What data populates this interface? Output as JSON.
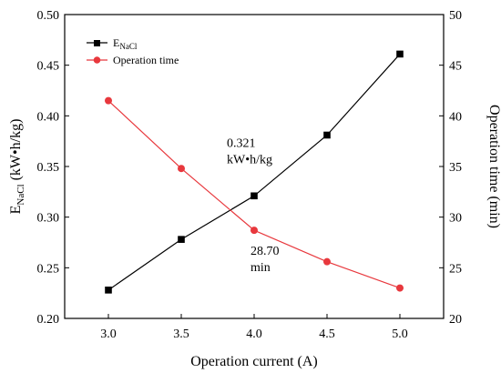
{
  "chart_data": {
    "type": "line",
    "xlabel": "Operation current (A)",
    "ylabel_left": {
      "main": "E",
      "sub": "NaCl",
      "rest": " (kW•h/kg)"
    },
    "ylabel_right": "Operation time (min)",
    "xlim": [
      2.7,
      5.3
    ],
    "ylim_left": [
      0.2,
      0.5
    ],
    "ylim_right": [
      20,
      50
    ],
    "x_ticks": [
      3.0,
      3.5,
      4.0,
      4.5,
      5.0
    ],
    "x_tick_labels": [
      "3.0",
      "3.5",
      "4.0",
      "4.5",
      "5.0"
    ],
    "y_left_ticks": [
      0.2,
      0.25,
      0.3,
      0.35,
      0.4,
      0.45,
      0.5
    ],
    "y_left_tick_labels": [
      "0.20",
      "0.25",
      "0.30",
      "0.35",
      "0.40",
      "0.45",
      "0.50"
    ],
    "y_right_ticks": [
      20,
      25,
      30,
      35,
      40,
      45,
      50
    ],
    "y_right_tick_labels": [
      "20",
      "25",
      "30",
      "35",
      "40",
      "45",
      "50"
    ],
    "grid": false,
    "legend_position": "top-left",
    "series": [
      {
        "name_main": "E",
        "name_sub": "NaCl",
        "axis": "left",
        "marker": "square",
        "color": "#000000",
        "x": [
          3.0,
          3.5,
          4.0,
          4.5,
          5.0
        ],
        "values": [
          0.228,
          0.278,
          0.321,
          0.381,
          0.461
        ]
      },
      {
        "name": "Operation time",
        "axis": "right",
        "marker": "circle",
        "color": "#e8383d",
        "x": [
          3.0,
          3.5,
          4.0,
          4.5,
          5.0
        ],
        "values": [
          41.5,
          34.8,
          28.7,
          25.6,
          23.0
        ]
      }
    ],
    "annotations": [
      {
        "lines": [
          "0.321",
          "kW•h/kg"
        ],
        "color": "#000000",
        "x": 4.0,
        "y": 0.321,
        "axis": "left"
      },
      {
        "lines": [
          "28.70",
          "min"
        ],
        "color": "#e8383d",
        "x": 4.0,
        "y": 28.7,
        "axis": "right"
      }
    ]
  }
}
